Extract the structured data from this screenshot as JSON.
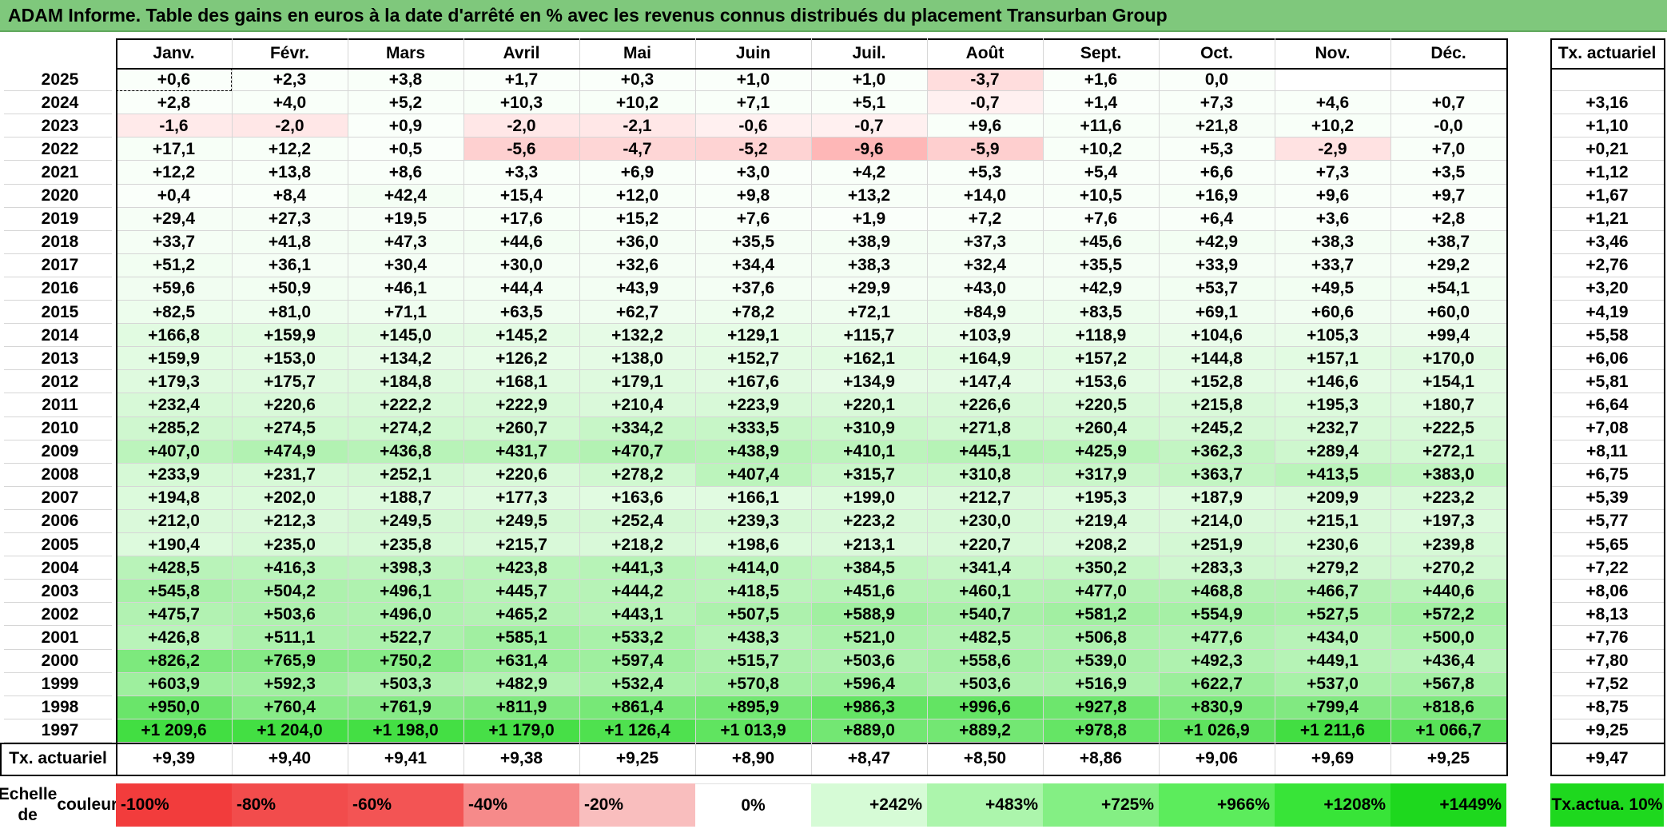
{
  "title": "ADAM Informe. Table des gains en euros à la date d'arrêté en % avec les revenus connus distribués du placement Transurban Group",
  "months": [
    "Janv.",
    "Févr.",
    "Mars",
    "Avril",
    "Mai",
    "Juin",
    "Juil.",
    "Août",
    "Sept.",
    "Oct.",
    "Nov.",
    "Déc."
  ],
  "rate_header": "Tx. actuariel",
  "rows": [
    {
      "year": "2025",
      "values": [
        "+0,6",
        "+2,3",
        "+3,8",
        "+1,7",
        "+0,3",
        "+1,0",
        "+1,0",
        "-3,7",
        "+1,6",
        "0,0",
        "",
        ""
      ],
      "rate": ""
    },
    {
      "year": "2024",
      "values": [
        "+2,8",
        "+4,0",
        "+5,2",
        "+10,3",
        "+10,2",
        "+7,1",
        "+5,1",
        "-0,7",
        "+1,4",
        "+7,3",
        "+4,6",
        "+0,7"
      ],
      "rate": "+3,16"
    },
    {
      "year": "2023",
      "values": [
        "-1,6",
        "-2,0",
        "+0,9",
        "-2,0",
        "-2,1",
        "-0,6",
        "-0,7",
        "+9,6",
        "+11,6",
        "+21,8",
        "+10,2",
        "-0,0"
      ],
      "rate": "+1,10"
    },
    {
      "year": "2022",
      "values": [
        "+17,1",
        "+12,2",
        "+0,5",
        "-5,6",
        "-4,7",
        "-5,2",
        "-9,6",
        "-5,9",
        "+10,2",
        "+5,3",
        "-2,9",
        "+7,0"
      ],
      "rate": "+0,21"
    },
    {
      "year": "2021",
      "values": [
        "+12,2",
        "+13,8",
        "+8,6",
        "+3,3",
        "+6,9",
        "+3,0",
        "+4,2",
        "+5,3",
        "+5,4",
        "+6,6",
        "+7,3",
        "+3,5"
      ],
      "rate": "+1,12"
    },
    {
      "year": "2020",
      "values": [
        "+0,4",
        "+8,4",
        "+42,4",
        "+15,4",
        "+12,0",
        "+9,8",
        "+13,2",
        "+14,0",
        "+10,5",
        "+16,9",
        "+9,6",
        "+9,7"
      ],
      "rate": "+1,67"
    },
    {
      "year": "2019",
      "values": [
        "+29,4",
        "+27,3",
        "+19,5",
        "+17,6",
        "+15,2",
        "+7,6",
        "+1,9",
        "+7,2",
        "+7,6",
        "+6,4",
        "+3,6",
        "+2,8"
      ],
      "rate": "+1,21"
    },
    {
      "year": "2018",
      "values": [
        "+33,7",
        "+41,8",
        "+47,3",
        "+44,6",
        "+36,0",
        "+35,5",
        "+38,9",
        "+37,3",
        "+45,6",
        "+42,9",
        "+38,3",
        "+38,7"
      ],
      "rate": "+3,46"
    },
    {
      "year": "2017",
      "values": [
        "+51,2",
        "+36,1",
        "+30,4",
        "+30,0",
        "+32,6",
        "+34,4",
        "+38,3",
        "+32,4",
        "+35,5",
        "+33,9",
        "+33,7",
        "+29,2"
      ],
      "rate": "+2,76"
    },
    {
      "year": "2016",
      "values": [
        "+59,6",
        "+50,9",
        "+46,1",
        "+44,4",
        "+43,9",
        "+37,6",
        "+29,9",
        "+43,0",
        "+42,9",
        "+53,7",
        "+49,5",
        "+54,1"
      ],
      "rate": "+3,20"
    },
    {
      "year": "2015",
      "values": [
        "+82,5",
        "+81,0",
        "+71,1",
        "+63,5",
        "+62,7",
        "+78,2",
        "+72,1",
        "+84,9",
        "+83,5",
        "+69,1",
        "+60,6",
        "+60,0"
      ],
      "rate": "+4,19"
    },
    {
      "year": "2014",
      "values": [
        "+166,8",
        "+159,9",
        "+145,0",
        "+145,2",
        "+132,2",
        "+129,1",
        "+115,7",
        "+103,9",
        "+118,9",
        "+104,6",
        "+105,3",
        "+99,4"
      ],
      "rate": "+5,58"
    },
    {
      "year": "2013",
      "values": [
        "+159,9",
        "+153,0",
        "+134,2",
        "+126,2",
        "+138,0",
        "+152,7",
        "+162,1",
        "+164,9",
        "+157,2",
        "+144,8",
        "+157,1",
        "+170,0"
      ],
      "rate": "+6,06"
    },
    {
      "year": "2012",
      "values": [
        "+179,3",
        "+175,7",
        "+184,8",
        "+168,1",
        "+179,1",
        "+167,6",
        "+134,9",
        "+147,4",
        "+153,6",
        "+152,8",
        "+146,6",
        "+154,1"
      ],
      "rate": "+5,81"
    },
    {
      "year": "2011",
      "values": [
        "+232,4",
        "+220,6",
        "+222,2",
        "+222,9",
        "+210,4",
        "+223,9",
        "+220,1",
        "+226,6",
        "+220,5",
        "+215,8",
        "+195,3",
        "+180,7"
      ],
      "rate": "+6,64"
    },
    {
      "year": "2010",
      "values": [
        "+285,2",
        "+274,5",
        "+274,2",
        "+260,7",
        "+334,2",
        "+333,5",
        "+310,9",
        "+271,8",
        "+260,4",
        "+245,2",
        "+232,7",
        "+222,5"
      ],
      "rate": "+7,08"
    },
    {
      "year": "2009",
      "values": [
        "+407,0",
        "+474,9",
        "+436,8",
        "+431,7",
        "+470,7",
        "+438,9",
        "+410,1",
        "+445,1",
        "+425,9",
        "+362,3",
        "+289,4",
        "+272,1"
      ],
      "rate": "+8,11"
    },
    {
      "year": "2008",
      "values": [
        "+233,9",
        "+231,7",
        "+252,1",
        "+220,6",
        "+278,2",
        "+407,4",
        "+315,7",
        "+310,8",
        "+317,9",
        "+363,7",
        "+413,5",
        "+383,0"
      ],
      "rate": "+6,75"
    },
    {
      "year": "2007",
      "values": [
        "+194,8",
        "+202,0",
        "+188,7",
        "+177,3",
        "+163,6",
        "+166,1",
        "+199,0",
        "+212,7",
        "+195,3",
        "+187,9",
        "+209,9",
        "+223,2"
      ],
      "rate": "+5,39"
    },
    {
      "year": "2006",
      "values": [
        "+212,0",
        "+212,3",
        "+249,5",
        "+249,5",
        "+252,4",
        "+239,3",
        "+223,2",
        "+230,0",
        "+219,4",
        "+214,0",
        "+215,1",
        "+197,3"
      ],
      "rate": "+5,77"
    },
    {
      "year": "2005",
      "values": [
        "+190,4",
        "+235,0",
        "+235,8",
        "+215,7",
        "+218,2",
        "+198,6",
        "+213,1",
        "+220,7",
        "+208,2",
        "+251,9",
        "+230,6",
        "+239,8"
      ],
      "rate": "+5,65"
    },
    {
      "year": "2004",
      "values": [
        "+428,5",
        "+416,3",
        "+398,3",
        "+423,8",
        "+441,3",
        "+414,0",
        "+384,5",
        "+341,4",
        "+350,2",
        "+283,3",
        "+279,2",
        "+270,2"
      ],
      "rate": "+7,22"
    },
    {
      "year": "2003",
      "values": [
        "+545,8",
        "+504,2",
        "+496,1",
        "+445,7",
        "+444,2",
        "+418,5",
        "+451,6",
        "+460,1",
        "+477,0",
        "+468,8",
        "+466,7",
        "+440,6"
      ],
      "rate": "+8,06"
    },
    {
      "year": "2002",
      "values": [
        "+475,7",
        "+503,6",
        "+496,0",
        "+465,2",
        "+443,1",
        "+507,5",
        "+588,9",
        "+540,7",
        "+581,2",
        "+554,9",
        "+527,5",
        "+572,2"
      ],
      "rate": "+8,13"
    },
    {
      "year": "2001",
      "values": [
        "+426,8",
        "+511,1",
        "+522,7",
        "+585,1",
        "+533,2",
        "+438,3",
        "+521,0",
        "+482,5",
        "+506,8",
        "+477,6",
        "+434,0",
        "+500,0"
      ],
      "rate": "+7,76"
    },
    {
      "year": "2000",
      "values": [
        "+826,2",
        "+765,9",
        "+750,2",
        "+631,4",
        "+597,4",
        "+515,7",
        "+503,6",
        "+558,6",
        "+539,0",
        "+492,3",
        "+449,1",
        "+436,4"
      ],
      "rate": "+7,80"
    },
    {
      "year": "1999",
      "values": [
        "+603,9",
        "+592,3",
        "+503,3",
        "+482,9",
        "+532,4",
        "+570,8",
        "+596,4",
        "+503,6",
        "+516,9",
        "+622,7",
        "+537,0",
        "+567,8"
      ],
      "rate": "+7,52"
    },
    {
      "year": "1998",
      "values": [
        "+950,0",
        "+760,4",
        "+761,9",
        "+811,9",
        "+861,4",
        "+895,9",
        "+986,3",
        "+996,6",
        "+927,8",
        "+830,9",
        "+799,4",
        "+818,6"
      ],
      "rate": "+8,75"
    },
    {
      "year": "1997",
      "values": [
        "+1 209,6",
        "+1 204,0",
        "+1 198,0",
        "+1 179,0",
        "+1 126,4",
        "+1 013,9",
        "+889,0",
        "+889,2",
        "+978,8",
        "+1 026,9",
        "+1 211,6",
        "+1 066,7"
      ],
      "rate": "+9,25"
    }
  ],
  "footer": {
    "label": "Tx. actuariel",
    "values": [
      "+9,39",
      "+9,40",
      "+9,41",
      "+9,38",
      "+9,25",
      "+8,90",
      "+8,47",
      "+8,50",
      "+8,86",
      "+9,06",
      "+9,69",
      "+9,25"
    ],
    "total": "+9,47"
  },
  "legend": {
    "label_line1": "Echelle de",
    "label_line2": "couleur",
    "steps": [
      {
        "text": "-100%",
        "color": "#f23c3c",
        "align": "left"
      },
      {
        "text": "-80%",
        "color": "#f24c4c",
        "align": "left"
      },
      {
        "text": "-60%",
        "color": "#f35454",
        "align": "left"
      },
      {
        "text": "-40%",
        "color": "#f68a8a",
        "align": "left"
      },
      {
        "text": "-20%",
        "color": "#f9bebe",
        "align": "left"
      },
      {
        "text": "0%",
        "color": "#ffffff",
        "align": "center"
      },
      {
        "text": "+242%",
        "color": "#d6fbd6",
        "align": "right"
      },
      {
        "text": "+483%",
        "color": "#acf5ac",
        "align": "right"
      },
      {
        "text": "+725%",
        "color": "#84ef84",
        "align": "right"
      },
      {
        "text": "+966%",
        "color": "#5cec5c",
        "align": "right"
      },
      {
        "text": "+1208%",
        "color": "#38e438",
        "align": "right"
      },
      {
        "text": "+1449%",
        "color": "#1ed81e",
        "align": "right"
      }
    ],
    "rate_line1": "Tx.",
    "rate_line2": "actua. 10%",
    "rate_color": "#1ed81e"
  },
  "colors": {
    "title_bar": "#7fc87c",
    "zero": "#ffffff",
    "negative_full": "#f23c3c",
    "positive_full": "#1ed81e"
  }
}
